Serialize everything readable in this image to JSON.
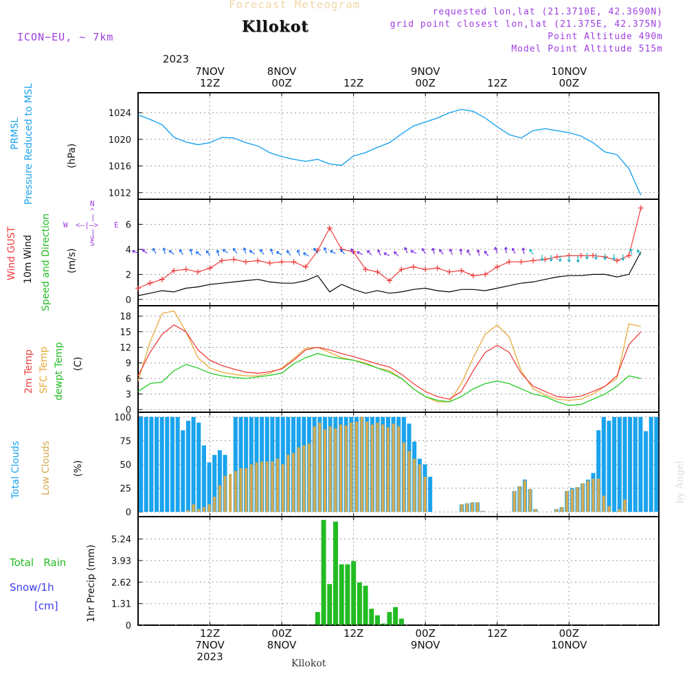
{
  "header": {
    "forecast_title": "Forecast Meteogram",
    "location": "Kllokot",
    "model": "ICON−EU, ~ 7km",
    "requested": "requested lon,lat (21.3710E, 42.3690N)",
    "grid_point": "grid point closest lon,lat (21.375E, 42.375N)",
    "point_altitude": "Point Altitude 490m",
    "model_altitude": "Model Point Altitude 515m",
    "footer_location": "Kllokot",
    "watermark": "by Angel"
  },
  "top_axis": {
    "year": "2023",
    "labels": [
      {
        "x": 12,
        "l1": "7NOV",
        "l2": "12Z"
      },
      {
        "x": 24,
        "l1": "8NOV",
        "l2": "00Z"
      },
      {
        "x": 36,
        "l1": "",
        "l2": "12Z"
      },
      {
        "x": 48,
        "l1": "9NOV",
        "l2": "00Z"
      },
      {
        "x": 60,
        "l1": "",
        "l2": "12Z"
      },
      {
        "x": 72,
        "l1": "10NOV",
        "l2": "00Z"
      }
    ]
  },
  "bottom_axis": {
    "labels": [
      {
        "x": 12,
        "l1": "12Z",
        "l2": "7NOV",
        "l3": "2023"
      },
      {
        "x": 24,
        "l1": "00Z",
        "l2": "8NOV",
        "l3": ""
      },
      {
        "x": 36,
        "l1": "12Z",
        "l2": "",
        "l3": ""
      },
      {
        "x": 48,
        "l1": "00Z",
        "l2": "9NOV",
        "l3": ""
      },
      {
        "x": 60,
        "l1": "12Z",
        "l2": "",
        "l3": ""
      },
      {
        "x": 72,
        "l1": "00Z",
        "l2": "10NOV",
        "l3": ""
      }
    ]
  },
  "colors": {
    "pressure": "#1aa3ee",
    "gust": "#ee3c3c",
    "wind": "#000000",
    "sfc_temp": "#e8a838",
    "dewpt": "#22cc22",
    "total_clouds": "#1aa3ee",
    "low_clouds": "#d4aa50",
    "rain": "#22bb22",
    "purple": "#9d3de0",
    "snow": "#3a3aee"
  },
  "panel_labels": {
    "pressure": [
      "PRMSL",
      "Pressure Reduced to MSL"
    ],
    "pressure_unit": "(hPa)",
    "wind": [
      "Wind GUST",
      "10m Wind",
      "Speed and Direction"
    ],
    "wind_unit": "(m/s)",
    "compass": {
      "n": "N",
      "s": "S",
      "w": "W",
      "e": "E"
    },
    "temp": [
      "2m Temp",
      "SFC Temp",
      "dewpt Temp"
    ],
    "temp_unit": "(C)",
    "clouds": [
      "Total Clouds",
      "Low Clouds"
    ],
    "clouds_unit": "(%)",
    "rain_total": "Total   Rain",
    "rain_snow": "Snow/1h",
    "rain_cm": "[cm]",
    "rain_unit": "1hr Precip (mm)"
  },
  "chart_data": [
    {
      "type": "line",
      "name": "pressure",
      "x_unit": "hours from 7NOV 00Z",
      "ylabel": "Pressure Reduced to MSL (hPa)",
      "ylim": [
        1011,
        1027
      ],
      "yticks": [
        1012,
        1016,
        1020,
        1024
      ],
      "x": [
        0,
        2,
        4,
        6,
        8,
        10,
        12,
        14,
        16,
        18,
        20,
        22,
        24,
        26,
        28,
        30,
        32,
        34,
        36,
        38,
        40,
        42,
        44,
        46,
        48,
        50,
        52,
        54,
        56,
        58,
        60,
        62,
        64,
        66,
        68,
        70,
        72,
        74,
        76,
        78,
        80,
        82,
        84
      ],
      "values": [
        1023.7,
        1023,
        1022.2,
        1020.3,
        1019.6,
        1019.2,
        1019.5,
        1020.3,
        1020.2,
        1019.5,
        1019,
        1018,
        1017.4,
        1017.0,
        1016.7,
        1017.0,
        1016.3,
        1016.1,
        1017.5,
        1018.0,
        1018.8,
        1019.5,
        1020.8,
        1022.0,
        1022.6,
        1023.2,
        1024.0,
        1024.5,
        1024.2,
        1023.2,
        1021.9,
        1020.7,
        1020.2,
        1021.3,
        1021.6,
        1021.3,
        1021.0,
        1020.5,
        1019.5,
        1018.1,
        1017.7,
        1015.6,
        1011.6
      ],
      "grid": true
    },
    {
      "type": "line",
      "name": "wind",
      "ylabel": "10m Wind / Wind GUST (m/s)",
      "ylim": [
        -0.5,
        8
      ],
      "yticks": [
        0,
        2,
        4,
        6
      ],
      "x": [
        0,
        2,
        4,
        6,
        8,
        10,
        12,
        14,
        16,
        18,
        20,
        22,
        24,
        26,
        28,
        30,
        32,
        34,
        36,
        38,
        40,
        42,
        44,
        46,
        48,
        50,
        52,
        54,
        56,
        58,
        60,
        62,
        64,
        66,
        68,
        70,
        72,
        74,
        76,
        78,
        80,
        82,
        84
      ],
      "series": [
        {
          "name": "Wind GUST",
          "values": [
            0.9,
            1.3,
            1.6,
            2.3,
            2.4,
            2.2,
            2.5,
            3.1,
            3.2,
            3.0,
            3.1,
            2.9,
            3.0,
            3.0,
            2.6,
            3.9,
            5.7,
            4.0,
            3.8,
            2.4,
            2.2,
            1.5,
            2.4,
            2.6,
            2.4,
            2.5,
            2.2,
            2.3,
            1.9,
            2.0,
            2.6,
            3.0,
            3.0,
            3.1,
            3.2,
            3.4,
            3.5,
            3.5,
            3.5,
            3.4,
            3.1,
            3.5,
            7.3
          ]
        },
        {
          "name": "10m Wind",
          "values": [
            0.3,
            0.5,
            0.7,
            0.6,
            0.9,
            1.0,
            1.2,
            1.3,
            1.4,
            1.5,
            1.6,
            1.4,
            1.3,
            1.3,
            1.5,
            1.9,
            0.6,
            1.2,
            0.8,
            0.5,
            0.7,
            0.5,
            0.6,
            0.8,
            0.9,
            0.7,
            0.6,
            0.8,
            0.8,
            0.7,
            0.9,
            1.1,
            1.3,
            1.4,
            1.6,
            1.8,
            1.9,
            1.9,
            2.0,
            2.0,
            1.8,
            2.0,
            3.8
          ]
        }
      ],
      "grid": true
    },
    {
      "type": "line",
      "name": "temperature",
      "ylabel": "Temp (C)",
      "ylim": [
        -0.5,
        20
      ],
      "yticks": [
        0,
        3,
        6,
        9,
        12,
        15,
        18
      ],
      "x": [
        0,
        2,
        4,
        6,
        8,
        10,
        12,
        14,
        16,
        18,
        20,
        22,
        24,
        26,
        28,
        30,
        32,
        34,
        36,
        38,
        40,
        42,
        44,
        46,
        48,
        50,
        52,
        54,
        56,
        58,
        60,
        62,
        64,
        66,
        68,
        70,
        72,
        74,
        76,
        78,
        80,
        82,
        84
      ],
      "series": [
        {
          "name": "2m Temp",
          "values": [
            6.5,
            11,
            14.5,
            16.3,
            15.0,
            11.5,
            9.5,
            8.5,
            7.8,
            7.2,
            7.0,
            7.3,
            7.8,
            9.5,
            11.5,
            12.0,
            11.5,
            10.8,
            10.2,
            9.5,
            8.8,
            8.2,
            6.8,
            5.0,
            3.5,
            2.5,
            2.0,
            3.5,
            7.5,
            11.0,
            12.4,
            11.0,
            7.0,
            4.5,
            3.5,
            2.5,
            2.3,
            2.6,
            3.5,
            4.5,
            6.5,
            12.5,
            15.0
          ]
        },
        {
          "name": "SFC Temp",
          "values": [
            5.5,
            13,
            18.5,
            19.0,
            15.0,
            10.0,
            8.0,
            7.2,
            6.8,
            6.5,
            6.5,
            7.0,
            8.0,
            9.8,
            11.8,
            12.0,
            11.0,
            10.0,
            9.5,
            9.0,
            8.0,
            7.5,
            6.0,
            4.0,
            2.5,
            1.5,
            1.5,
            5.0,
            10.0,
            14.5,
            16.3,
            14.0,
            7.5,
            4.0,
            2.8,
            2.0,
            1.8,
            2.0,
            3.0,
            4.5,
            6.0,
            16.5,
            16.0
          ]
        },
        {
          "name": "dewpt Temp",
          "values": [
            3.5,
            5.0,
            5.3,
            7.5,
            8.7,
            8.0,
            7.0,
            6.5,
            6.2,
            6.0,
            6.3,
            6.6,
            7.0,
            8.8,
            10.0,
            10.8,
            10.2,
            9.8,
            9.5,
            8.8,
            8.0,
            7.2,
            6.0,
            4.0,
            2.5,
            1.8,
            1.5,
            2.5,
            4.0,
            5.0,
            5.5,
            5.0,
            4.0,
            3.0,
            2.5,
            1.5,
            0.8,
            1.0,
            2.0,
            3.0,
            4.5,
            6.5,
            6.0
          ]
        }
      ],
      "grid": true
    },
    {
      "type": "bar",
      "name": "clouds",
      "ylabel": "Clouds (%)",
      "ylim": [
        -5,
        105
      ],
      "yticks": [
        0,
        25,
        50,
        75,
        100
      ],
      "series": [
        {
          "name": "Total Clouds",
          "values": [
            100,
            100,
            100,
            100,
            100,
            100,
            100,
            100,
            86,
            96,
            100,
            94,
            70,
            52,
            60,
            65,
            60,
            0,
            100,
            100,
            100,
            100,
            100,
            100,
            100,
            100,
            100,
            100,
            100,
            100,
            100,
            100,
            100,
            100,
            100,
            100,
            100,
            100,
            100,
            100,
            100,
            100,
            100,
            100,
            100,
            100,
            100,
            100,
            100,
            100,
            100,
            93,
            74,
            56,
            50,
            37,
            0,
            0,
            0,
            0,
            0,
            8,
            9,
            10,
            10,
            1,
            0,
            0,
            0,
            0,
            0,
            22,
            27,
            34,
            24,
            3,
            0,
            0,
            0,
            3,
            5,
            22,
            25,
            26,
            30,
            34,
            41,
            86,
            100,
            96,
            100,
            100,
            100,
            100,
            100,
            100,
            85,
            100,
            100
          ]
        },
        {
          "name": "Low Clouds",
          "values": [
            0,
            0,
            0,
            0,
            0,
            0,
            0,
            0,
            0,
            2,
            8,
            3,
            5,
            8,
            16,
            28,
            38,
            40,
            43,
            46,
            46,
            50,
            52,
            53,
            53,
            53,
            56,
            50,
            60,
            62,
            68,
            70,
            72,
            90,
            94,
            87,
            90,
            88,
            92,
            91,
            94,
            95,
            100,
            95,
            92,
            94,
            92,
            89,
            93,
            90,
            73,
            64,
            56,
            50,
            37,
            0,
            0,
            0,
            0,
            0,
            0,
            8,
            9,
            10,
            10,
            1,
            0,
            0,
            0,
            0,
            0,
            22,
            27,
            33,
            24,
            3,
            0,
            0,
            0,
            3,
            5,
            22,
            24,
            26,
            30,
            33,
            35,
            35,
            17,
            6,
            0,
            3,
            13,
            0,
            0,
            0,
            0,
            0,
            0
          ]
        }
      ],
      "grid": true
    },
    {
      "type": "bar",
      "name": "precipitation",
      "ylabel": "1hr Precip (mm)",
      "ylim": [
        0,
        6.6
      ],
      "yticks": [
        0,
        1.31,
        2.62,
        3.93,
        5.24
      ],
      "x": [
        30,
        31,
        32,
        33,
        34,
        35,
        36,
        37,
        38,
        39,
        40,
        41,
        42,
        43,
        44,
        45,
        46
      ],
      "values": [
        0.8,
        6.4,
        2.5,
        6.3,
        3.7,
        3.7,
        3.9,
        2.6,
        2.4,
        1.0,
        0.6,
        0.1,
        0.8,
        1.1,
        0.4,
        0,
        0
      ],
      "grid": true
    }
  ]
}
